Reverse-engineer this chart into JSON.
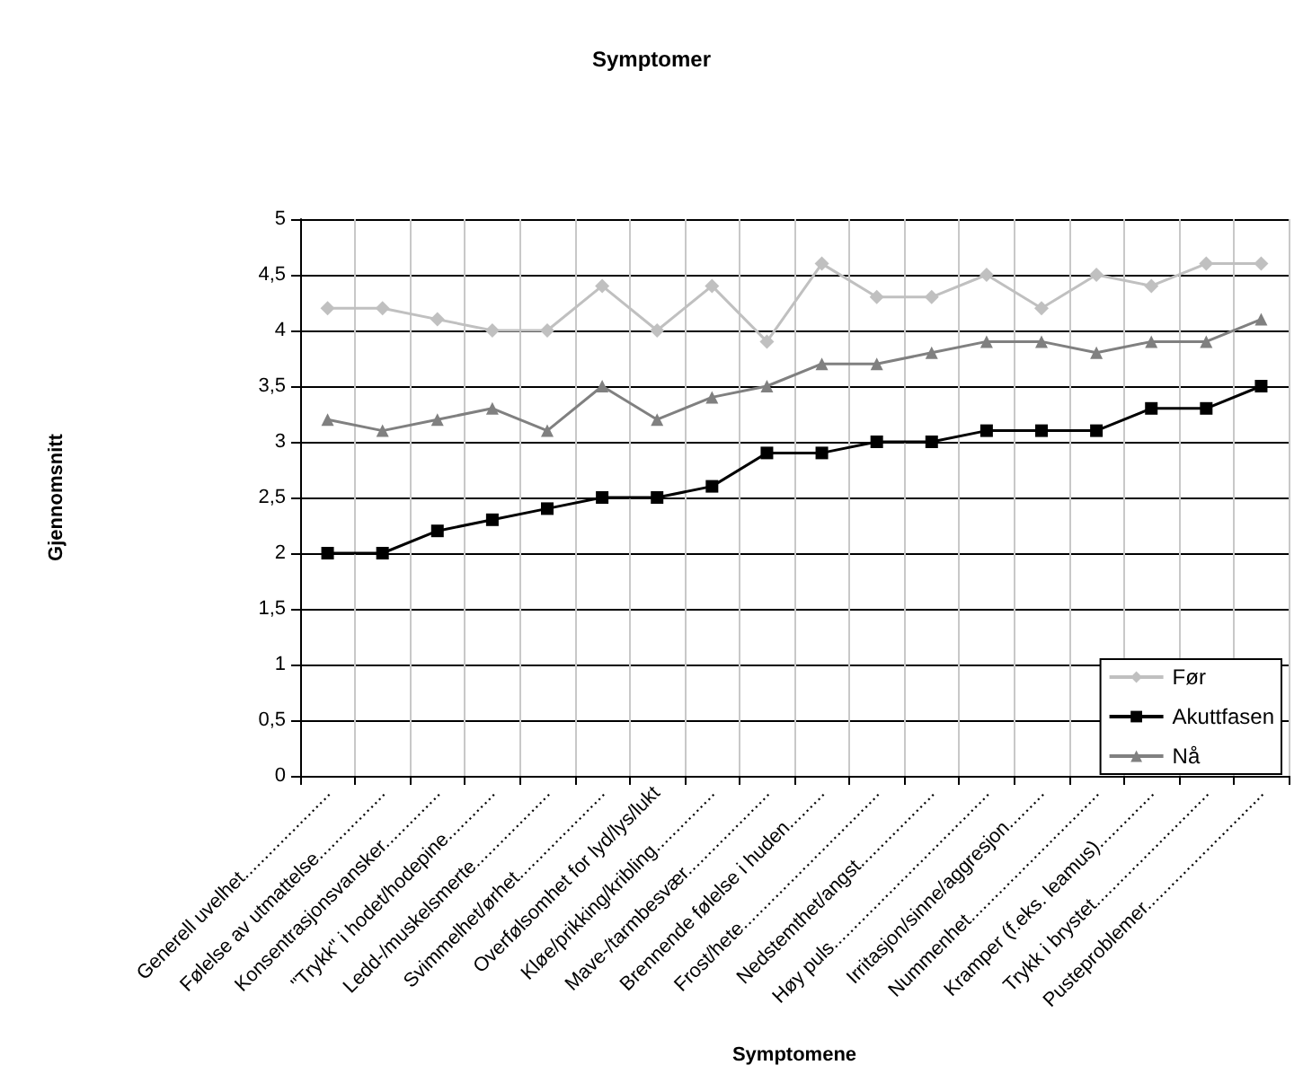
{
  "chart_data": {
    "type": "line",
    "title": "Symptomer",
    "xlabel": "Symptomene",
    "ylabel": "Gjennomsnitt",
    "categories": [
      "Generell uvelhet......................",
      "Følelse av utmattelse.................",
      "Konsentrasjonsvansker..............",
      "\"Trykk\" i hodet/hodepine............",
      "Ledd-/muskelsmerte...................",
      "Svimmelhet/ørhet......................",
      "Overfølsomhet for lyd/lys/lukt",
      "Kløe/prikking/kribling...............",
      "Mave-/tarmbesvær.....................",
      "Brennende følelse i huden.........",
      "Frost/hete...................................",
      "Nedstemthet/angst...................",
      "Høy puls........................................",
      "Irritasjon/sinne/aggresjon.........",
      "Nummenhet.................................",
      "Kramper (f.eks. leamus)..............",
      "Trykk i brystet.............................",
      "Pusteproblemer.............................."
    ],
    "series": [
      {
        "name": "Før",
        "color": "#c0c0c0",
        "marker": "diamond",
        "values": [
          4.2,
          4.2,
          4.1,
          4.0,
          4.0,
          4.4,
          4.0,
          4.4,
          3.9,
          4.6,
          4.3,
          4.3,
          4.5,
          4.2,
          4.5,
          4.4,
          4.6,
          4.6
        ]
      },
      {
        "name": "Akuttfasen",
        "color": "#000000",
        "marker": "square",
        "values": [
          2.0,
          2.0,
          2.2,
          2.3,
          2.4,
          2.5,
          2.5,
          2.6,
          2.9,
          2.9,
          3.0,
          3.0,
          3.1,
          3.1,
          3.1,
          3.3,
          3.3,
          3.5
        ]
      },
      {
        "name": "Nå",
        "color": "#808080",
        "marker": "triangle",
        "values": [
          3.2,
          3.1,
          3.2,
          3.3,
          3.1,
          3.5,
          3.2,
          3.4,
          3.5,
          3.7,
          3.7,
          3.8,
          3.9,
          3.9,
          3.8,
          3.9,
          3.9,
          4.1
        ]
      }
    ],
    "ylim": [
      0,
      5
    ],
    "yticks": [
      0,
      {
        "value": 0.5,
        "label": "0,5"
      },
      1,
      {
        "value": 1.5,
        "label": "1,5"
      },
      2,
      {
        "value": 2.5,
        "label": "2,5"
      },
      3,
      {
        "value": 3.5,
        "label": "3,5"
      },
      4,
      {
        "value": 4.5,
        "label": "4,5"
      },
      5
    ],
    "grid": true,
    "legend": "bottom right",
    "line_style": "solid"
  }
}
